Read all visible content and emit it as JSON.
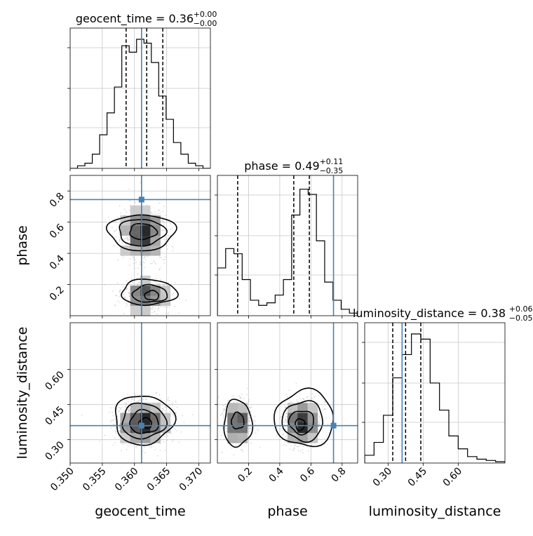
{
  "chart_data": {
    "type": "corner",
    "parameters": [
      {
        "key": "geocent_time",
        "label": "geocent_time",
        "ticks": [
          "0.350",
          "0.355",
          "0.360",
          "0.365",
          "0.370"
        ],
        "tick_values": [
          0.35,
          0.355,
          0.36,
          0.365,
          0.37
        ],
        "range": [
          0.35,
          0.3718
        ],
        "title_name": "geocent_time = 0.36",
        "title_sup": "+0.00",
        "title_sub": "−0.00",
        "quantiles": [
          0.3587,
          0.3619,
          0.3644
        ],
        "truth": 0.3611
      },
      {
        "key": "phase",
        "label": "phase",
        "ticks": [
          "0.2",
          "0.4",
          "0.6",
          "0.8"
        ],
        "tick_values": [
          0.2,
          0.4,
          0.6,
          0.8
        ],
        "range": [
          0.0,
          0.9
        ],
        "title_name": "phase = 0.49",
        "title_sup": "+0.11",
        "title_sub": "−0.35",
        "quantiles": [
          0.13,
          0.49,
          0.59
        ],
        "truth": 0.745
      },
      {
        "key": "luminosity_distance",
        "label": "luminosity_distance",
        "ticks": [
          "0.30",
          "0.45",
          "0.60"
        ],
        "tick_values": [
          0.3,
          0.45,
          0.6
        ],
        "range": [
          0.2,
          0.8
        ],
        "title_name": "luminosity_distance = 0.38",
        "title_sup": "+0.06",
        "title_sub": "−0.05",
        "quantiles": [
          0.32,
          0.375,
          0.44
        ],
        "truth": 0.36
      }
    ],
    "histograms": {
      "geocent_time": [
        0,
        0.02,
        0.04,
        0.11,
        0.26,
        0.43,
        0.63,
        0.95,
        0.9,
        1.0,
        0.97,
        0.82,
        0.56,
        0.38,
        0.2,
        0.11,
        0.04,
        0.02,
        0
      ],
      "phase": [
        0.37,
        0.52,
        0.48,
        0.28,
        0.12,
        0.08,
        0.1,
        0.16,
        0.28,
        0.78,
        0.98,
        0.94,
        0.58,
        0.26,
        0.12,
        0.05,
        0.02
      ],
      "luminosity_distance": [
        0.06,
        0.16,
        0.37,
        0.66,
        0.84,
        1.0,
        0.96,
        0.62,
        0.41,
        0.21,
        0.11,
        0.05,
        0.03,
        0.02,
        0.01
      ]
    },
    "grid": true,
    "truth_color": "#4682b4",
    "line_color": "#000000",
    "scatter_color": "#bbbbbb"
  }
}
